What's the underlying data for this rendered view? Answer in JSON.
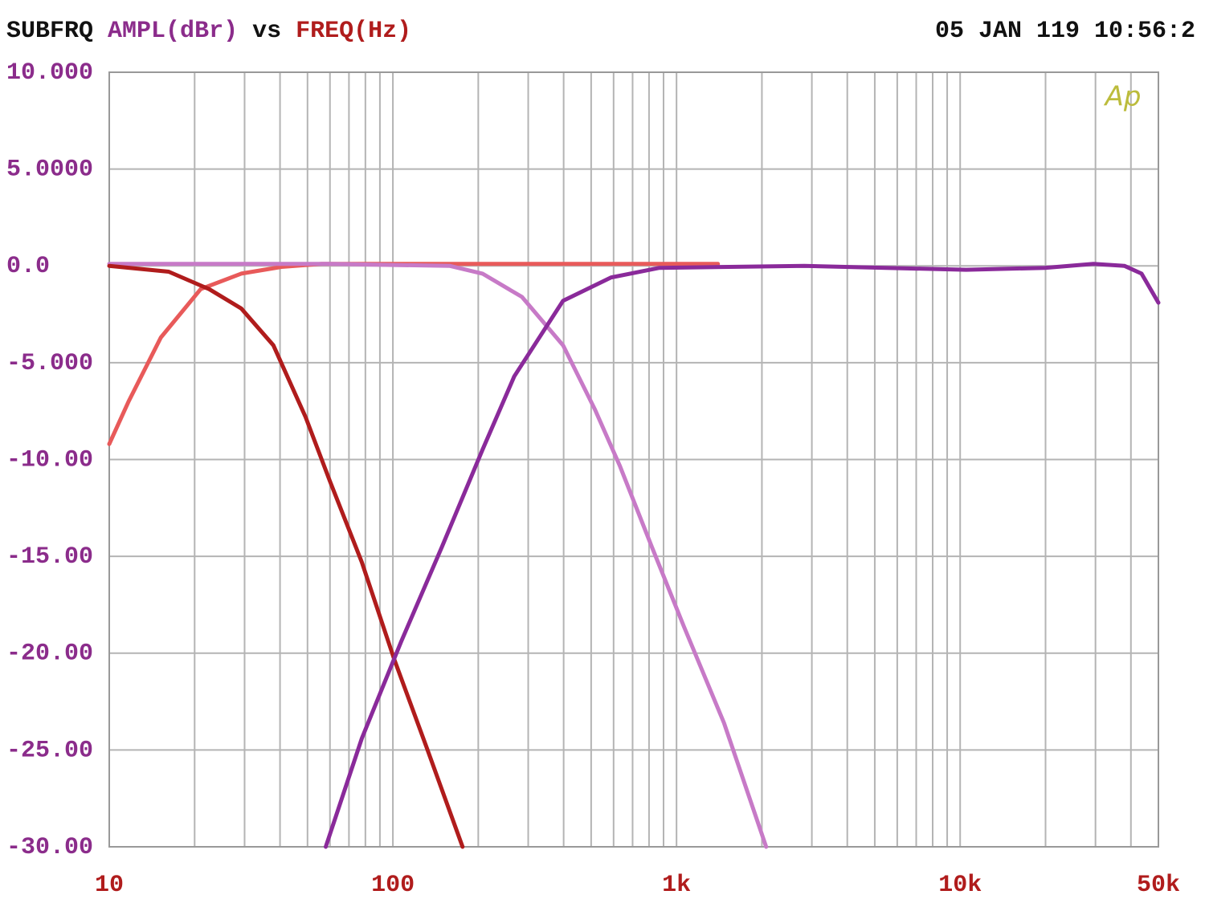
{
  "chart_data": {
    "type": "line",
    "title_prefix": "SUBFRQ",
    "y_label": "AMPL(dBr)",
    "title_vs": "vs",
    "x_label": "FREQ(Hz)",
    "timestamp": "05 JAN 119 10:56:2",
    "logo": "Ap",
    "log_x": true,
    "grid": true,
    "xlim": [
      10,
      50000
    ],
    "ylim": [
      -30,
      10
    ],
    "xticks": [
      10,
      100,
      {
        "value": 1000,
        "label": "1k"
      },
      {
        "value": 10000,
        "label": "10k"
      },
      {
        "value": 50000,
        "label": "50k"
      }
    ],
    "xminorticks": [
      20,
      30,
      40,
      50,
      60,
      70,
      80,
      90,
      200,
      300,
      400,
      500,
      600,
      700,
      800,
      900,
      2000,
      3000,
      4000,
      5000,
      6000,
      7000,
      8000,
      9000,
      20000,
      30000,
      40000
    ],
    "yticks": [
      {
        "value": 10,
        "label": "10.000"
      },
      {
        "value": 5,
        "label": "5.0000"
      },
      {
        "value": 0,
        "label": "0.0"
      },
      {
        "value": -5,
        "label": "-5.000"
      },
      {
        "value": -10,
        "label": "-10.00"
      },
      {
        "value": -15,
        "label": "-15.00"
      },
      {
        "value": -20,
        "label": "-20.00"
      },
      {
        "value": -25,
        "label": "-25.00"
      },
      {
        "value": -30,
        "label": "-30.00"
      }
    ],
    "series": [
      {
        "color": "#e85a5a",
        "x": [
          10,
          11.7,
          15.2,
          21,
          29.2,
          40.5,
          56,
          250,
          500,
          1400
        ],
        "values": [
          -9.2,
          -7,
          -3.7,
          -1.2,
          -0.4,
          -0.05,
          0.1,
          0.1,
          0.1,
          0.1
        ]
      },
      {
        "color": "#c77ac7",
        "x": [
          10,
          60,
          159,
          207,
          285,
          398,
          515,
          630,
          818,
          1060,
          1470,
          2070
        ],
        "values": [
          0.1,
          0.1,
          0,
          -0.4,
          -1.6,
          -4.1,
          -7.4,
          -10.3,
          -14.5,
          -18.6,
          -23.6,
          -30
        ]
      },
      {
        "color": "#b01c1c",
        "x": [
          10,
          16.2,
          22.5,
          29.2,
          37.9,
          49.2,
          59.9,
          77.7,
          101,
          131,
          176
        ],
        "values": [
          0,
          -0.3,
          -1.2,
          -2.2,
          -4.1,
          -7.8,
          -11.1,
          -15.3,
          -20.3,
          -24.8,
          -30
        ]
      },
      {
        "color": "#8a2a9a",
        "x": [
          58,
          77.7,
          107,
          149,
          207,
          268,
          398,
          587,
          870,
          2820,
          10500,
          19900,
          29500,
          38000,
          43600,
          50000
        ],
        "values": [
          -30,
          -24.4,
          -19.4,
          -14.5,
          -9.5,
          -5.7,
          -1.8,
          -0.6,
          -0.1,
          0,
          -0.2,
          -0.1,
          0.1,
          0,
          -0.4,
          -1.9
        ]
      }
    ]
  }
}
